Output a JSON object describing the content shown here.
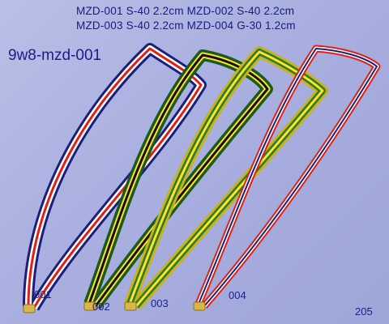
{
  "header": {
    "spec_lines": [
      "MZD-001 S-40  2.2cm   MZD-002 S-40  2.2cm",
      "MZD-003 S-40  2.2cm   MZD-004 G-30  1.2cm"
    ],
    "code": "9w8-mzd-001"
  },
  "ribbons": [
    {
      "label": "001",
      "stripes": [
        "#e01f16",
        "#ffffff",
        "#1b1f78"
      ]
    },
    {
      "label": "002",
      "stripes": [
        "#1a5a1a",
        "#ffe02a",
        "#101010",
        "#ffe02a",
        "#1a5a1a"
      ]
    },
    {
      "label": "003",
      "stripes": [
        "#c8b21e",
        "#2a7a2a",
        "#ffe02a",
        "#2a7a2a",
        "#c8b21e"
      ]
    },
    {
      "label": "004",
      "stripes": [
        "#e01f16",
        "#ffffff",
        "#1b1f78"
      ]
    }
  ],
  "page_number": "205"
}
